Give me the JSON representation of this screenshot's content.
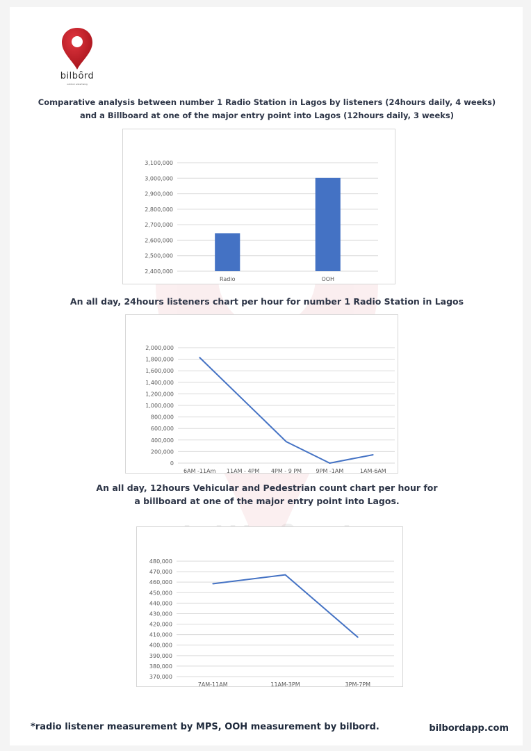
{
  "brand": {
    "wordmark": "bilbȏrd",
    "tagline": "outdoor advertising",
    "website": "bilbordapp.com",
    "watermark_text": "bilbȏrd",
    "colors": {
      "pin": "#c8232c",
      "bar": "#4472c4",
      "line": "#4472c4",
      "grid": "#d9d9d9"
    }
  },
  "headings": {
    "chart1_line1": "Comparative analysis between number 1 Radio Station in Lagos by listeners (24hours daily, 4 weeks)",
    "chart1_line2": "and a Billboard at one of the major entry point into Lagos (12hours daily, 3 weeks)",
    "chart2": "An all day, 24hours listeners chart per hour for number 1 Radio Station in Lagos",
    "chart3_line1": "An all day, 12hours Vehicular and Pedestrian count chart per hour for",
    "chart3_line2": "a billboard at one of the major entry point into Lagos."
  },
  "footer": {
    "note": "*radio listener measurement by MPS, OOH measurement by bilbord."
  },
  "chart_data": [
    {
      "type": "bar",
      "title": "",
      "categories": [
        "Radio",
        "OOH"
      ],
      "values": [
        2645000,
        3002000
      ],
      "ylim": [
        2400000,
        3100000
      ],
      "ytick_step": 100000,
      "grid": true,
      "legend": "none"
    },
    {
      "type": "line",
      "title": "",
      "categories": [
        "6AM -11Am",
        "11AM - 4PM",
        "4PM - 9 PM",
        "9PM -1AM",
        "1AM-6AM"
      ],
      "values": [
        1830000,
        1100000,
        370000,
        0,
        145000
      ],
      "ylim": [
        0,
        2000000
      ],
      "ytick_step": 200000,
      "grid": true,
      "legend": "none"
    },
    {
      "type": "line",
      "title": "",
      "categories": [
        "7AM-11AM",
        "11AM-3PM",
        "3PM-7PM"
      ],
      "values": [
        458500,
        467000,
        407500
      ],
      "ylim": [
        370000,
        480000
      ],
      "ytick_step": 10000,
      "grid": true,
      "legend": "none"
    }
  ]
}
